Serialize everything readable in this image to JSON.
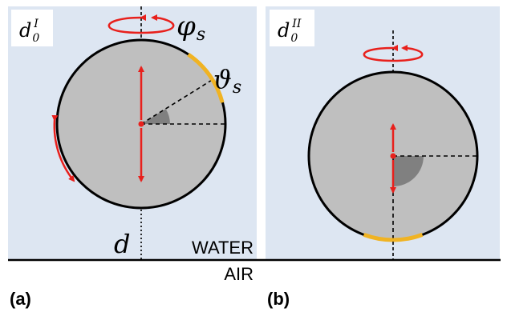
{
  "colors": {
    "water": "#dde6f2",
    "sphere": "#bfbfbf",
    "wedge": "#808080",
    "arrow": "#e8201c",
    "patch": "#f0b323",
    "line": "#000000",
    "label_box": "#ffffff"
  },
  "panel_a": {
    "corner_label": {
      "base": "d",
      "sub": "0",
      "sup": "I"
    },
    "phi_label": {
      "base": "φ",
      "sub": "s"
    },
    "theta_label": {
      "base": "ϑ",
      "sub": "s"
    },
    "axis_label": "d",
    "water_label": "WATER",
    "air_label": "AIR",
    "panel_tag": "(a)"
  },
  "panel_b": {
    "corner_label": {
      "base": "d",
      "sub": "0",
      "sup": "II"
    },
    "panel_tag": "(b)"
  }
}
